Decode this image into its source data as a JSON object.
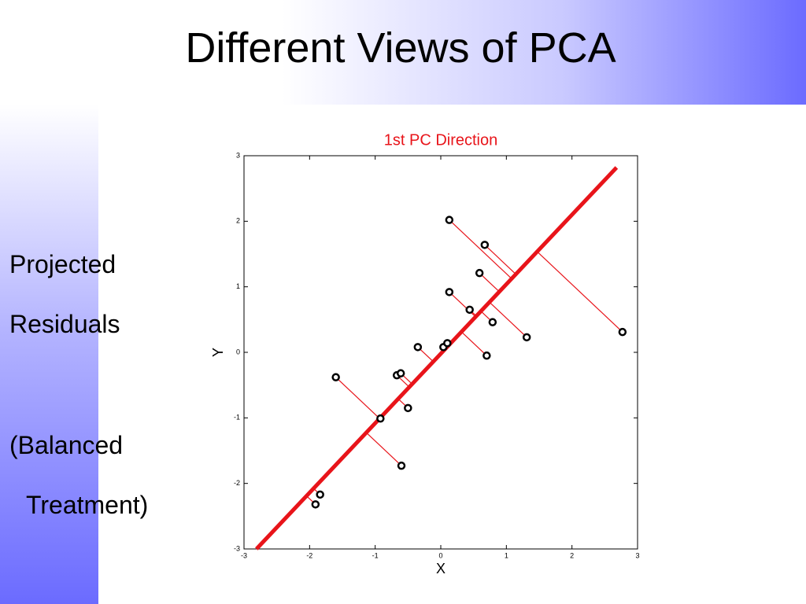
{
  "slide": {
    "title": "Different Views of PCA",
    "side_text": [
      "Projected",
      "Residuals",
      "(Balanced",
      "Treatment)"
    ]
  },
  "chart_data": {
    "type": "scatter",
    "title": "1st PC Direction",
    "title_color": "#e8141a",
    "x_label": "X",
    "y_label": "Y",
    "xlim": [
      -3,
      3
    ],
    "ylim": [
      -3,
      3
    ],
    "xticks": [
      -3,
      -2,
      -1,
      0,
      1,
      2,
      3
    ],
    "yticks": [
      -3,
      -2,
      -1,
      0,
      1,
      2,
      3
    ],
    "points": {
      "color": "#000000",
      "x": [
        0.13,
        0.67,
        0.59,
        0.13,
        0.44,
        0.79,
        1.31,
        2.77,
        -0.35,
        0.04,
        0.1,
        0.7,
        -1.6,
        -0.67,
        -0.61,
        -0.5,
        -0.92,
        -0.6,
        -1.84,
        -1.91
      ],
      "y": [
        2.02,
        1.64,
        1.21,
        0.92,
        0.65,
        0.46,
        0.23,
        0.31,
        0.08,
        0.08,
        0.14,
        -0.05,
        -0.38,
        -0.35,
        -0.32,
        -0.85,
        -1.01,
        -1.73,
        -2.17,
        -2.32
      ]
    },
    "pc_line": {
      "color": "#e8141a",
      "x": [
        -2.81,
        2.68
      ],
      "y": [
        -3,
        2.82
      ]
    },
    "residual_color": "#e8141a"
  }
}
